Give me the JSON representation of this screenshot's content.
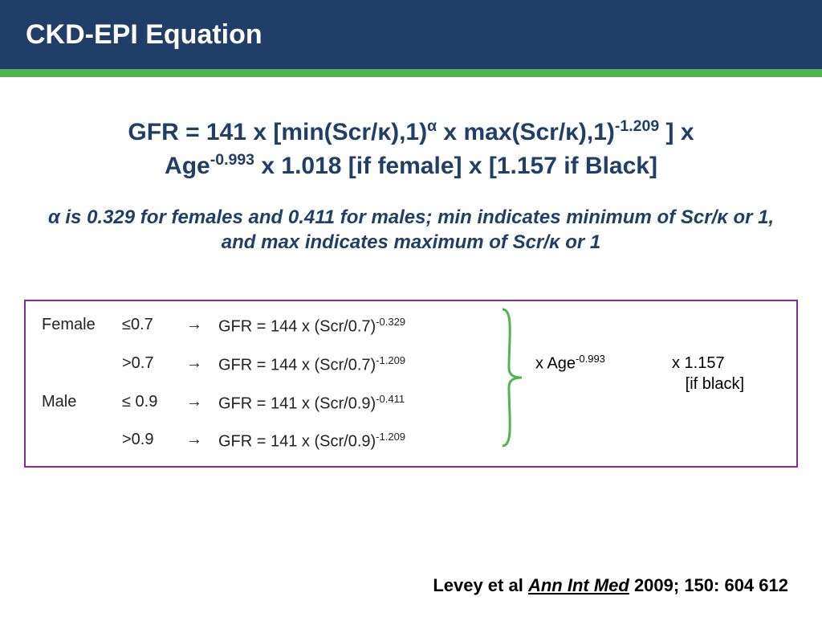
{
  "header": {
    "title": "CKD-EPI Equation"
  },
  "colors": {
    "header_bg": "#1f3e68",
    "accent": "#4fb54f",
    "text_primary": "#1f3e68",
    "box_border": "#7b2fa0",
    "brace": "#4fb54f"
  },
  "equation": {
    "line1_html": "GFR = 141 x [min(Scr/κ),1)<span class='sup'>α</span> x max(Scr/κ),1)<span class='sup'>-1.209</span> ]  x",
    "line2_html": "Age<span class='sup'>-0.993</span> x 1.018 [if female] x [1.157 if Black]",
    "note_html": "α  is 0.329 for females and 0.411 for males; min indicates minimum of Scr/κ or 1, and max indicates maximum of Scr/κ or 1"
  },
  "table": {
    "rows": [
      {
        "sex": "Female",
        "cond": "≤0.7",
        "arrow": "→",
        "formula_html": "GFR = 144 x (Scr/0.7)<span class='sup'>-0.329</span>"
      },
      {
        "sex": "",
        "cond": ">0.7",
        "arrow": "→",
        "formula_html": "GFR = 144 x (Scr/0.7)<span class='sup'>-1.209</span>"
      },
      {
        "sex": "Male",
        "cond": "≤ 0.9",
        "arrow": "→",
        "formula_html": "GFR = 141 x (Scr/0.9)<span class='sup'>-0.411</span>"
      },
      {
        "sex": "",
        "cond": ">0.9",
        "arrow": "→",
        "formula_html": "GFR = 141 x (Scr/0.9)<span class='sup'>-1.209</span>"
      }
    ],
    "side1_html": "x Age<span class='sup'>-0.993</span>",
    "side2_line1": "x 1.157",
    "side2_line2": "[if black]"
  },
  "citation": {
    "author": "Levey et al ",
    "journal": "Ann Int Med",
    "rest": " 2009; 150: 604 612"
  },
  "typography": {
    "title_pt": 34,
    "eq_pt": 30,
    "note_pt": 24,
    "table_pt": 20,
    "citation_pt": 22
  }
}
